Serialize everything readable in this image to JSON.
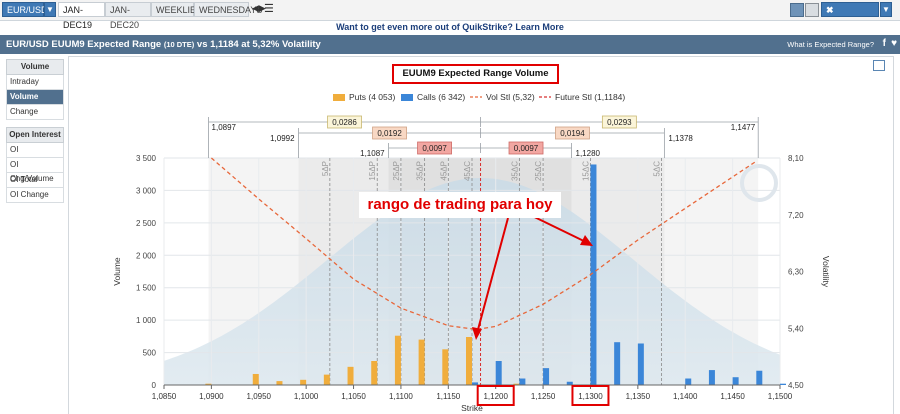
{
  "toolbar": {
    "instrument": "EUR/USD",
    "tabs": [
      "JAN-DEC19",
      "JAN-DEC20",
      "WEEKLIES",
      "WEDNESDAYS"
    ],
    "quiktools": "QUIKTOOLS"
  },
  "promo": "Want to get even more out of QuikStrike? Learn More",
  "header": {
    "title": "EUR/USD EUUM9 Expected Range",
    "title_dte": "(10 DTE)",
    "title_rest": "vs 1,1184 at 5,32% Volatility",
    "link": "What is Expected Range?"
  },
  "sidebar": {
    "volume_heading": "Volume",
    "volume_items": [
      "Intraday",
      "Volume",
      "Change"
    ],
    "oi_heading": "Open Interest",
    "oi_items": [
      "OI",
      "OI Chg/Volume",
      "OI Total",
      "OI Change"
    ]
  },
  "annotation": "rango de trading para hoy",
  "colors": {
    "puts": "#f0ad3c",
    "calls": "#3b86d8",
    "vol": "#e8673a",
    "future": "#d73030",
    "bell": "#9fc3d9"
  },
  "chart_data": {
    "type": "bar",
    "title": "EUUM9 Expected Range Volume",
    "xlabel": "Strike",
    "ylabel": "Volume",
    "y2label": "Volatility",
    "legend": {
      "puts": "Puts (4 053)",
      "calls": "Calls (6 342)",
      "vol": "Vol Stl (5,32)",
      "future": "Future Stl (1,1184)"
    },
    "xlim": [
      1.085,
      1.15
    ],
    "xticks": [
      "1,0850",
      "1,0900",
      "1,0950",
      "1,1000",
      "1,1050",
      "1,1100",
      "1,1150",
      "1,1200",
      "1,1250",
      "1,1300",
      "1,1350",
      "1,1400",
      "1,1450",
      "1,1500"
    ],
    "ylim": [
      0,
      3500
    ],
    "yticks": [
      "0",
      "500",
      "1 000",
      "1 500",
      "2 000",
      "2 500",
      "3 000",
      "3 500"
    ],
    "y2lim": [
      4.5,
      8.1
    ],
    "y2ticks": [
      "4,50",
      "5,40",
      "6,30",
      "7,20",
      "8,10"
    ],
    "put_strikes": [
      1.09,
      1.095,
      1.0975,
      1.1,
      1.1025,
      1.105,
      1.1075,
      1.11,
      1.1125,
      1.115,
      1.1175,
      1.1225
    ],
    "put_values": [
      20,
      170,
      60,
      80,
      160,
      280,
      370,
      760,
      700,
      550,
      740,
      20
    ],
    "call_strikes": [
      1.1175,
      1.12,
      1.1225,
      1.125,
      1.1275,
      1.13,
      1.1325,
      1.135,
      1.14,
      1.1425,
      1.145,
      1.1475,
      1.15
    ],
    "call_values": [
      40,
      370,
      100,
      260,
      50,
      3400,
      660,
      640,
      100,
      230,
      120,
      220,
      20
    ],
    "vol_curve_x": [
      1.09,
      1.095,
      1.1,
      1.105,
      1.11,
      1.115,
      1.118,
      1.12,
      1.125,
      1.13,
      1.135,
      1.14,
      1.1475
    ],
    "vol_curve_y": [
      8.1,
      7.45,
      6.82,
      6.18,
      5.72,
      5.44,
      5.38,
      5.43,
      5.78,
      6.25,
      6.8,
      7.3,
      8.05
    ],
    "future": 1.1184,
    "delta_lines": [
      {
        "label": "5ΔP",
        "x": 1.1025
      },
      {
        "label": "15ΔP",
        "x": 1.1075
      },
      {
        "label": "25ΔP",
        "x": 1.11
      },
      {
        "label": "35ΔP",
        "x": 1.1125
      },
      {
        "label": "45ΔP",
        "x": 1.115
      },
      {
        "label": "45ΔC",
        "x": 1.1175
      },
      {
        "label": "35ΔC",
        "x": 1.1225
      },
      {
        "label": "25ΔC",
        "x": 1.125
      },
      {
        "label": "15ΔC",
        "x": 1.13
      },
      {
        "label": "5ΔC",
        "x": 1.1375
      }
    ],
    "ranges": [
      {
        "low": "1,0897",
        "high": "1,1477",
        "lo": 1.0897,
        "hi": 1.1477,
        "left_width": "0,0286",
        "right_width": "0,0293"
      },
      {
        "low": "1,0992",
        "high": "1,1378",
        "lo": 1.0992,
        "hi": 1.1378,
        "left_width": "0,0192",
        "right_width": "0,0194"
      },
      {
        "low": "1,1087",
        "high": "1,1280",
        "lo": 1.1087,
        "hi": 1.128,
        "left_width": "0,0097",
        "right_width": "0,0097"
      }
    ],
    "highlighted_ticks": [
      "1,1200",
      "1,1300"
    ]
  }
}
